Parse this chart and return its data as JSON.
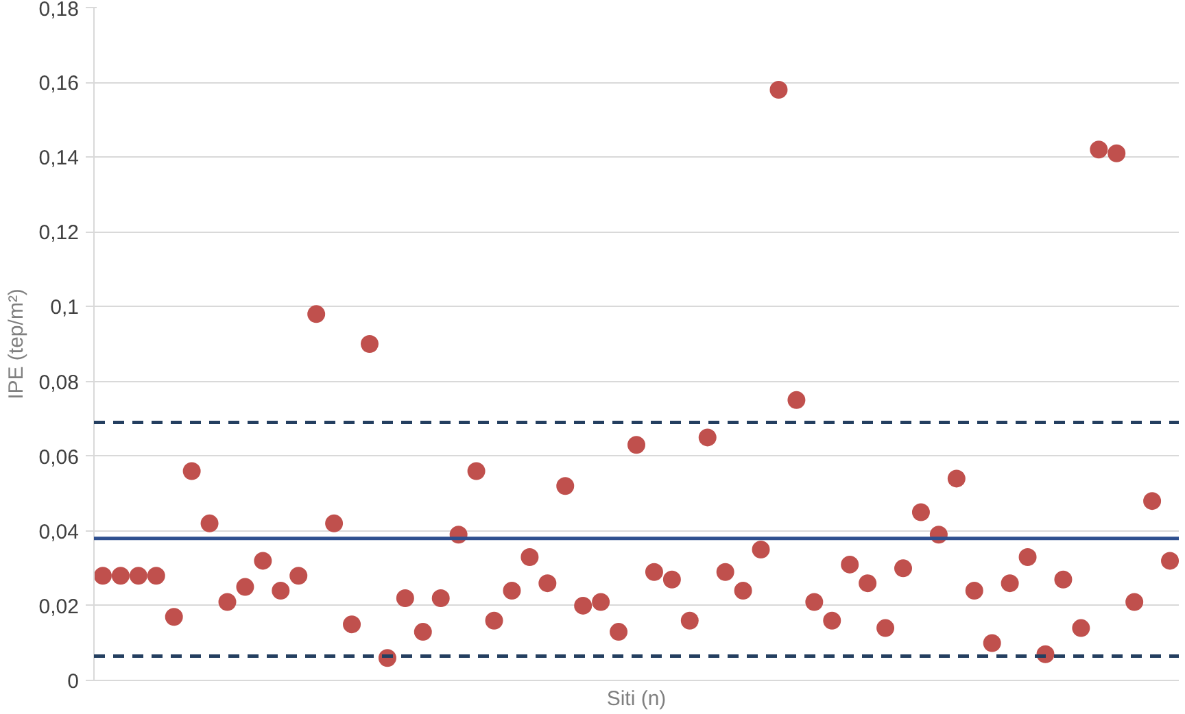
{
  "chart_data": {
    "type": "scatter",
    "xlabel": "Siti (n)",
    "ylabel": "IPE (tep/m²)",
    "categories": [
      null,
      null,
      null,
      null,
      null,
      null,
      null,
      null,
      null,
      null,
      null,
      null,
      null,
      null,
      null,
      null,
      null,
      null,
      null,
      null,
      null,
      null,
      null,
      null,
      null,
      null,
      null,
      null,
      null,
      null,
      null,
      null,
      null,
      null,
      null,
      null,
      null,
      null,
      null,
      null,
      null,
      null,
      null,
      null,
      null,
      null,
      null,
      null,
      null,
      null,
      null,
      null,
      null,
      null,
      null,
      null,
      null,
      null,
      null,
      null,
      null
    ],
    "series": [
      {
        "color": "#c0504d",
        "values": [
          0.028,
          0.028,
          0.028,
          0.028,
          0.017,
          0.056,
          0.042,
          0.021,
          0.025,
          0.032,
          0.024,
          0.028,
          0.098,
          0.042,
          0.015,
          0.09,
          0.006,
          0.022,
          0.013,
          0.022,
          0.039,
          0.056,
          0.016,
          0.024,
          0.033,
          0.026,
          0.052,
          0.02,
          0.021,
          0.013,
          0.063,
          0.029,
          0.027,
          0.016,
          0.065,
          0.029,
          0.024,
          0.035,
          0.158,
          0.075,
          0.021,
          0.016,
          0.031,
          0.026,
          0.014,
          0.03,
          0.045,
          0.039,
          0.054,
          0.024,
          0.01,
          0.026,
          0.033,
          0.007,
          0.027,
          0.014,
          0.142,
          0.141,
          0.021,
          0.048,
          0.032
        ]
      }
    ],
    "marker": "circle",
    "ylim": [
      0,
      0.18
    ],
    "yticks": [
      0,
      {
        "value": 0.02,
        "label": "0,02"
      },
      {
        "value": 0.04,
        "label": "0,04"
      },
      {
        "value": 0.06,
        "label": "0,06"
      },
      {
        "value": 0.08,
        "label": "0,08"
      },
      {
        "value": 0.1,
        "label": "0,1"
      },
      {
        "value": 0.12,
        "label": "0,12"
      },
      {
        "value": 0.14,
        "label": "0,14"
      },
      {
        "value": 0.16,
        "label": "0,16"
      },
      {
        "value": 0.18,
        "label": "0,18"
      }
    ],
    "ref_lines": [
      {
        "axis": "y",
        "value": 0.038,
        "color": "#2e4f8f",
        "line_style": "solid"
      },
      {
        "axis": "y",
        "value": 0.069,
        "color": "#243f60",
        "line_style": "dashed"
      },
      {
        "axis": "y",
        "value": 0.0065,
        "color": "#243f60",
        "line_style": "dashed"
      }
    ],
    "grid": "y"
  }
}
